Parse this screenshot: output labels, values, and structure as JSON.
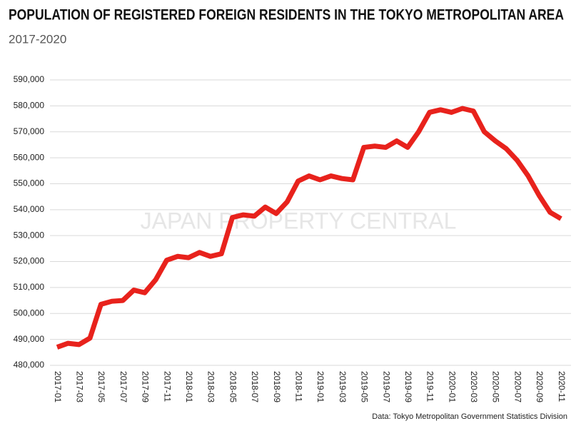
{
  "chart_data": {
    "type": "line",
    "title": "POPULATION OF REGISTERED FOREIGN RESIDENTS IN THE TOKYO METROPOLITAN AREA",
    "subtitle": "2017-2020",
    "watermark": "JAPAN PROPERTY CENTRAL",
    "source": "Data: Tokyo Metropolitan Government Statistics Division",
    "categories": [
      "2017-01",
      null,
      "2017-03",
      null,
      "2017-05",
      null,
      "2017-07",
      null,
      "2017-09",
      null,
      "2017-11",
      null,
      "2018-01",
      null,
      "2018-03",
      null,
      "2018-05",
      null,
      "2018-07",
      null,
      "2018-09",
      null,
      "2018-11",
      null,
      "2019-01",
      null,
      "2019-03",
      null,
      "2019-05",
      null,
      "2019-07",
      null,
      "2019-09",
      null,
      "2019-11",
      null,
      "2020-01",
      null,
      "2020-03",
      null,
      "2020-05",
      null,
      "2020-07",
      null,
      "2020-09",
      null,
      "2020-11"
    ],
    "values": [
      487000,
      488500,
      488000,
      490500,
      503500,
      504700,
      505000,
      509000,
      508000,
      513000,
      520500,
      522000,
      521500,
      523500,
      522000,
      523000,
      537000,
      538000,
      537500,
      541000,
      538500,
      543000,
      551000,
      553000,
      551500,
      553000,
      552000,
      551500,
      564000,
      564500,
      564000,
      566500,
      564000,
      570000,
      577500,
      578500,
      577500,
      579000,
      578000,
      570000,
      566500,
      563500,
      559000,
      553000,
      545500,
      539000,
      536500
    ],
    "color": "#e8221c",
    "ylim": [
      480000,
      590000
    ],
    "yticks": [
      {
        "value": 480000,
        "label": "480,000"
      },
      {
        "value": 490000,
        "label": "490,000"
      },
      {
        "value": 500000,
        "label": "500,000"
      },
      {
        "value": 510000,
        "label": "510,000"
      },
      {
        "value": 520000,
        "label": "520,000"
      },
      {
        "value": 530000,
        "label": "530,000"
      },
      {
        "value": 540000,
        "label": "540,000"
      },
      {
        "value": 550000,
        "label": "550,000"
      },
      {
        "value": 560000,
        "label": "560,000"
      },
      {
        "value": 570000,
        "label": "570,000"
      },
      {
        "value": 580000,
        "label": "580,000"
      },
      {
        "value": 590000,
        "label": "590,000"
      }
    ],
    "grid": true
  }
}
